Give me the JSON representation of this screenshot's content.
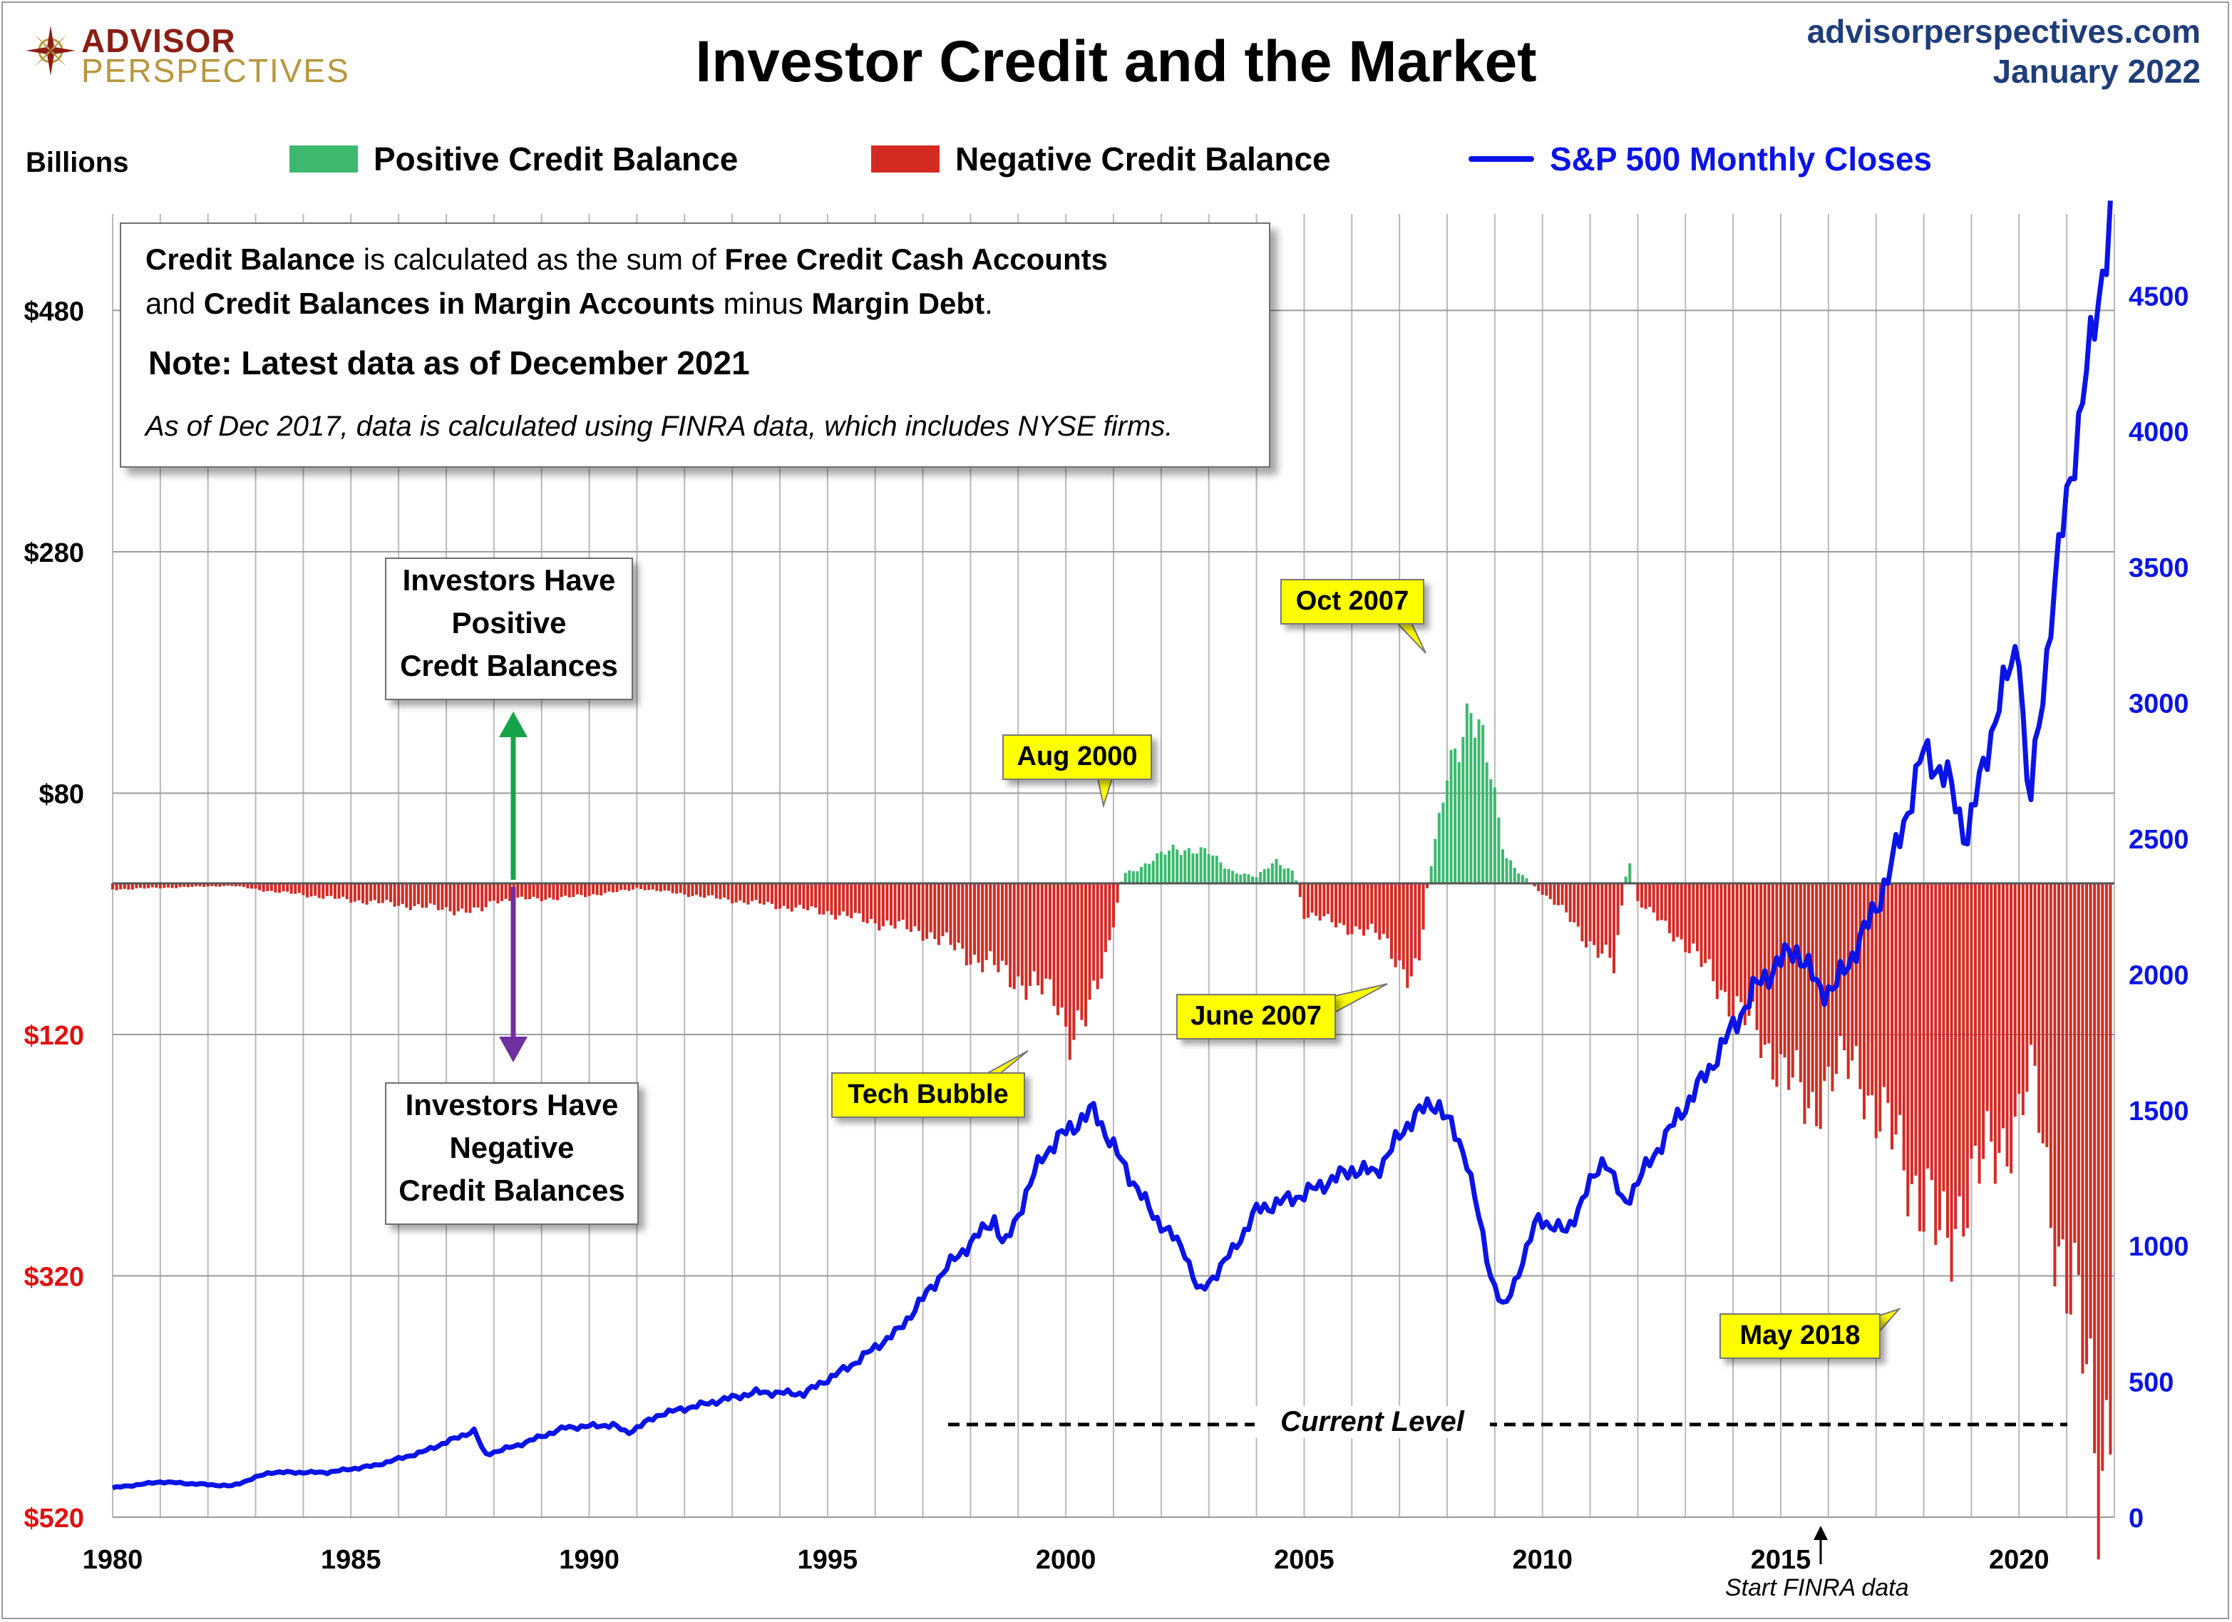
{
  "logo": {
    "line1": "ADVISOR",
    "line2": "PERSPECTIVES"
  },
  "title": "Investor Credit and the Market",
  "site": {
    "url": "advisorperspectives.com",
    "date": "January 2022"
  },
  "units_label": "Billions",
  "legend": [
    {
      "label": "Positive Credit Balance",
      "color": "#3cb96e"
    },
    {
      "label": "Negative Credit Balance",
      "color": "#d42a22"
    },
    {
      "label": "S&P 500 Monthly Closes",
      "color": "#0a14e6"
    }
  ],
  "notebox": {
    "l1_a": "Credit Balance",
    "l1_b": " is calculated as the sum of ",
    "l1_c": "Free Credit Cash Accounts",
    "l2_a": "and ",
    "l2_b": "Credit Balances in Margin Accounts",
    "l2_c": " minus ",
    "l2_d": "Margin Debt",
    "l2_e": ".",
    "note": "Note: Latest data as of December 2021",
    "finra_note": "As of Dec 2017, data is calculated using FINRA data, which includes NYSE firms."
  },
  "callouts": {
    "positive": [
      "Investors Have",
      "Positive",
      "Credt Balances"
    ],
    "negative": [
      "Investors Have",
      "Negative",
      "Credit Balances"
    ],
    "aug2000": "Aug 2000",
    "oct2007": "Oct 2007",
    "june2007": "June 2007",
    "techbubble": "Tech Bubble",
    "may2018": "May 2018",
    "current_level": "Current Level",
    "start_finra": "Start FINRA data"
  },
  "chart_data": {
    "type": "bar",
    "title": "Investor Credit and the Market",
    "x_ticks": [
      "1980",
      "1985",
      "1990",
      "1995",
      "2000",
      "2005",
      "2010",
      "2015",
      "2020"
    ],
    "xlim": [
      1980,
      2022
    ],
    "left_axis": {
      "label": "Billions",
      "ticks": [
        "$480",
        "$280",
        "$80",
        "$120",
        "$320",
        "$520"
      ],
      "tick_values": [
        480,
        280,
        80,
        -120,
        -320,
        -520
      ],
      "ylim": [
        -520,
        560
      ]
    },
    "right_axis": {
      "label": "S&P 500 Monthly Closes",
      "ticks": [
        "4500",
        "4000",
        "3500",
        "3000",
        "2500",
        "2000",
        "1500",
        "1000",
        "500",
        "0"
      ],
      "tick_values": [
        4500,
        4000,
        3500,
        3000,
        2500,
        2000,
        1500,
        1000,
        500,
        0
      ],
      "ylim": [
        0,
        4800
      ]
    },
    "credit_balance_points": [
      [
        1980.0,
        -5
      ],
      [
        1982.5,
        -2
      ],
      [
        1983.2,
        -6
      ],
      [
        1985.0,
        -14
      ],
      [
        1987.7,
        -24
      ],
      [
        1988.0,
        -14
      ],
      [
        1989.5,
        -12
      ],
      [
        1990.8,
        -6
      ],
      [
        1991.0,
        -4
      ],
      [
        1993.0,
        -14
      ],
      [
        1995.0,
        -24
      ],
      [
        1997.0,
        -40
      ],
      [
        1998.5,
        -70
      ],
      [
        1999.8,
        -95
      ],
      [
        2000.1,
        -125
      ],
      [
        2000.5,
        -110
      ],
      [
        2000.9,
        -50
      ],
      [
        2001.2,
        8
      ],
      [
        2001.6,
        14
      ],
      [
        2002.3,
        30
      ],
      [
        2003.0,
        25
      ],
      [
        2003.5,
        10
      ],
      [
        2004.0,
        5
      ],
      [
        2004.4,
        20
      ],
      [
        2004.8,
        8
      ],
      [
        2005.0,
        -25
      ],
      [
        2005.8,
        -35
      ],
      [
        2006.7,
        -45
      ],
      [
        2007.2,
        -80
      ],
      [
        2007.4,
        -75
      ],
      [
        2007.6,
        2
      ],
      [
        2008.0,
        85
      ],
      [
        2008.5,
        155
      ],
      [
        2008.9,
        90
      ],
      [
        2009.2,
        25
      ],
      [
        2009.5,
        10
      ],
      [
        2009.9,
        -5
      ],
      [
        2010.5,
        -25
      ],
      [
        2011.0,
        -50
      ],
      [
        2011.5,
        -70
      ],
      [
        2011.8,
        20
      ],
      [
        2012.0,
        -15
      ],
      [
        2013.0,
        -50
      ],
      [
        2013.6,
        -80
      ],
      [
        2014.4,
        -120
      ],
      [
        2015.0,
        -150
      ],
      [
        2015.6,
        -190
      ],
      [
        2016.0,
        -160
      ],
      [
        2016.6,
        -150
      ],
      [
        2017.0,
        -190
      ],
      [
        2017.6,
        -230
      ],
      [
        2018.1,
        -270
      ],
      [
        2018.4,
        -310
      ],
      [
        2018.9,
        -250
      ],
      [
        2019.4,
        -230
      ],
      [
        2019.9,
        -200
      ],
      [
        2020.3,
        -160
      ],
      [
        2020.7,
        -270
      ],
      [
        2021.0,
        -330
      ],
      [
        2021.4,
        -400
      ],
      [
        2021.7,
        -480
      ],
      [
        2021.9,
        -430
      ]
    ],
    "sp500_points": [
      [
        1980.0,
        108
      ],
      [
        1981.0,
        130
      ],
      [
        1982.5,
        115
      ],
      [
        1983.3,
        165
      ],
      [
        1984.5,
        165
      ],
      [
        1985.5,
        190
      ],
      [
        1986.5,
        240
      ],
      [
        1987.6,
        320
      ],
      [
        1987.8,
        230
      ],
      [
        1988.5,
        265
      ],
      [
        1989.5,
        330
      ],
      [
        1990.5,
        340
      ],
      [
        1990.8,
        310
      ],
      [
        1991.5,
        380
      ],
      [
        1992.5,
        420
      ],
      [
        1993.5,
        460
      ],
      [
        1994.5,
        455
      ],
      [
        1995.5,
        560
      ],
      [
        1996.5,
        690
      ],
      [
        1997.5,
        920
      ],
      [
        1998.5,
        1100
      ],
      [
        1998.7,
        990
      ],
      [
        1999.5,
        1330
      ],
      [
        2000.0,
        1420
      ],
      [
        2000.6,
        1500
      ],
      [
        2001.0,
        1360
      ],
      [
        2001.8,
        1120
      ],
      [
        2002.5,
        980
      ],
      [
        2002.8,
        820
      ],
      [
        2003.5,
        980
      ],
      [
        2004.0,
        1130
      ],
      [
        2005.0,
        1190
      ],
      [
        2006.0,
        1280
      ],
      [
        2006.5,
        1270
      ],
      [
        2007.3,
        1480
      ],
      [
        2007.8,
        1530
      ],
      [
        2008.4,
        1330
      ],
      [
        2008.9,
        900
      ],
      [
        2009.2,
        760
      ],
      [
        2009.9,
        1100
      ],
      [
        2010.5,
        1050
      ],
      [
        2011.3,
        1330
      ],
      [
        2011.7,
        1150
      ],
      [
        2012.5,
        1380
      ],
      [
        2013.5,
        1650
      ],
      [
        2014.5,
        1960
      ],
      [
        2015.3,
        2100
      ],
      [
        2015.8,
        1950
      ],
      [
        2016.1,
        1940
      ],
      [
        2016.8,
        2170
      ],
      [
        2017.3,
        2380
      ],
      [
        2018.0,
        2820
      ],
      [
        2018.5,
        2720
      ],
      [
        2018.9,
        2500
      ],
      [
        2019.5,
        2950
      ],
      [
        2020.0,
        3230
      ],
      [
        2020.2,
        2580
      ],
      [
        2020.7,
        3360
      ],
      [
        2021.0,
        3750
      ],
      [
        2021.5,
        4300
      ],
      [
        2021.9,
        4770
      ]
    ]
  }
}
